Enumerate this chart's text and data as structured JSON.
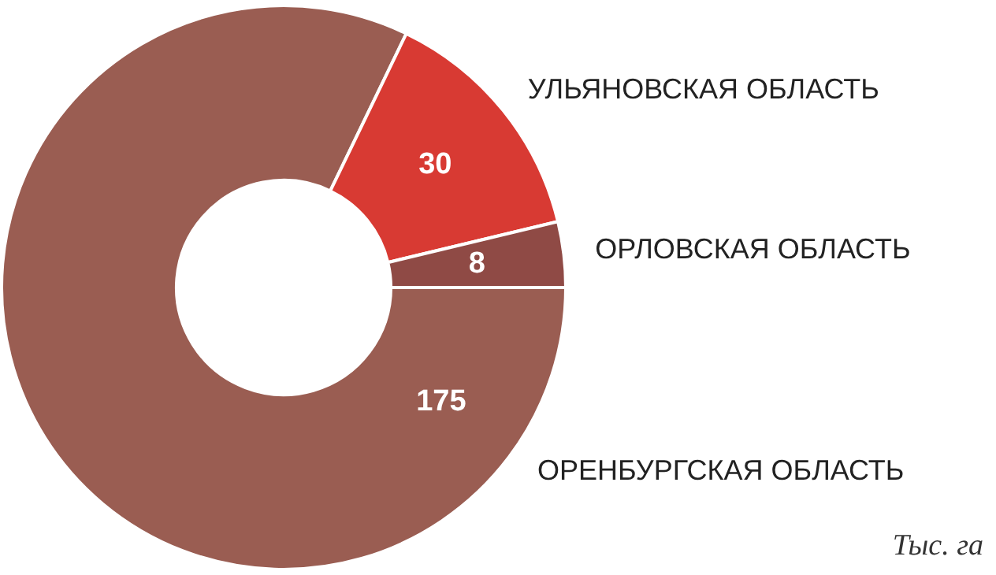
{
  "chart_data": {
    "type": "donut",
    "categories": [
      "ОРЕНБУРГСКАЯ ОБЛАСТЬ",
      "УЛЬЯНОВСКАЯ ОБЛАСТЬ",
      "ОРЛОВСКАЯ ОБЛАСТЬ"
    ],
    "values": [
      175,
      30,
      8
    ],
    "colors": [
      "#9a5d52",
      "#d83a33",
      "#8f4a45"
    ],
    "data_labels": true,
    "legend": false,
    "annotations": [
      "Тыс. га"
    ]
  }
}
